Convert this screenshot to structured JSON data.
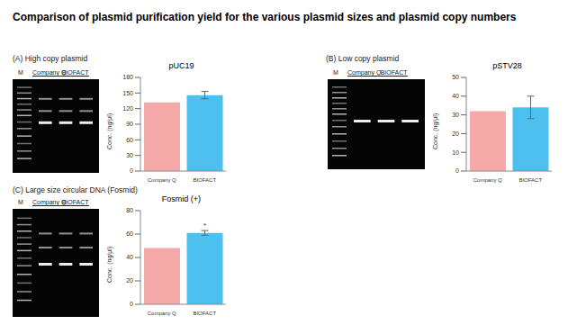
{
  "title": "Comparison of plasmid purification yield for the various plasmid sizes and plasmid copy numbers",
  "gel_lane_labels": {
    "marker": "M",
    "company": "Company Q",
    "biofact": "BIOFACT"
  },
  "chart_data": [
    {
      "type": "bar",
      "panel": "(A) High copy plasmid",
      "title": "pUC19",
      "y_label": "Conc. (ng/μl)",
      "categories": [
        "Company Q",
        "BIOFACT"
      ],
      "values": [
        132,
        146
      ],
      "errors": [
        null,
        7
      ],
      "annotations": [
        null,
        null
      ],
      "colors": [
        "#f5a9a9",
        "#4ec0f0"
      ],
      "ylim": [
        0,
        180
      ],
      "yticks": [
        0,
        30,
        60,
        90,
        120,
        150,
        180
      ]
    },
    {
      "type": "bar",
      "panel": "(B) Low copy plasmid",
      "title": "pSTV28",
      "y_label": "Conc. (ng/μl)",
      "categories": [
        "Company Q",
        "BIOFACT"
      ],
      "values": [
        32,
        34
      ],
      "errors": [
        null,
        6
      ],
      "annotations": [
        null,
        null
      ],
      "colors": [
        "#f5a9a9",
        "#4ec0f0"
      ],
      "ylim": [
        0,
        50
      ],
      "yticks": [
        0,
        10,
        20,
        30,
        40,
        50
      ]
    },
    {
      "type": "bar",
      "panel": "(C) Large size circular DNA (Fosmid)",
      "title": "Fosmid (+)",
      "y_label": "Conc. (ng/μl)",
      "categories": [
        "Company Q",
        "BIOFACT"
      ],
      "values": [
        48,
        61
      ],
      "errors": [
        null,
        2
      ],
      "annotations": [
        null,
        "*"
      ],
      "colors": [
        "#f5a9a9",
        "#4ec0f0"
      ],
      "ylim": [
        0,
        80
      ],
      "yticks": [
        0,
        20,
        40,
        60,
        80
      ]
    }
  ]
}
